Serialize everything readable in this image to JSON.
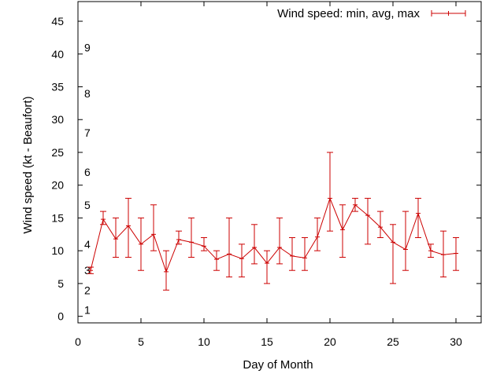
{
  "chart_data": {
    "type": "line",
    "title": "",
    "xlabel": "Day of Month",
    "ylabel": "Wind speed (kt - Beaufort)",
    "xlim": [
      0,
      32
    ],
    "ylim": [
      -1,
      48
    ],
    "xticks": [
      0,
      5,
      10,
      15,
      20,
      25,
      30
    ],
    "yticks": [
      0,
      5,
      10,
      15,
      20,
      25,
      30,
      35,
      40,
      45
    ],
    "grid": false,
    "legend_position": "top-right",
    "series": [
      {
        "name": "Wind speed: min, avg, max",
        "color": "#cc0000",
        "x": [
          1,
          2,
          3,
          4,
          5,
          6,
          7,
          8,
          9,
          10,
          11,
          12,
          13,
          14,
          15,
          16,
          17,
          18,
          19,
          20,
          21,
          22,
          23,
          24,
          25,
          26,
          27,
          28,
          29,
          30
        ],
        "avg": [
          7,
          14.8,
          11.8,
          13.8,
          11,
          12.5,
          6.8,
          11.7,
          11.3,
          10.7,
          8.7,
          9.5,
          8.8,
          10.5,
          8.1,
          10.5,
          9.2,
          8.9,
          12.1,
          18,
          13.2,
          17,
          15.4,
          13.6,
          11.3,
          10.2,
          15.7,
          10,
          9.4,
          9.6
        ],
        "min": [
          6.5,
          14,
          9,
          9,
          7,
          10,
          4,
          11,
          9,
          10,
          7,
          6,
          6,
          8,
          5,
          8,
          7,
          7,
          10,
          13,
          9,
          16,
          11,
          12,
          5,
          7,
          12,
          9,
          6,
          7
        ],
        "max": [
          7.5,
          16,
          15,
          18,
          15,
          17,
          10,
          13,
          15,
          12,
          10,
          15,
          11,
          14,
          10,
          15,
          12,
          12,
          15,
          25,
          17,
          18,
          18,
          16,
          14,
          16,
          18,
          11,
          13,
          12
        ]
      }
    ],
    "beaufort_labels": [
      {
        "label": "1",
        "y": 1
      },
      {
        "label": "2",
        "y": 4
      },
      {
        "label": "3",
        "y": 7
      },
      {
        "label": "4",
        "y": 11
      },
      {
        "label": "5",
        "y": 17
      },
      {
        "label": "6",
        "y": 22
      },
      {
        "label": "7",
        "y": 28
      },
      {
        "label": "8",
        "y": 34
      },
      {
        "label": "9",
        "y": 41
      }
    ]
  }
}
